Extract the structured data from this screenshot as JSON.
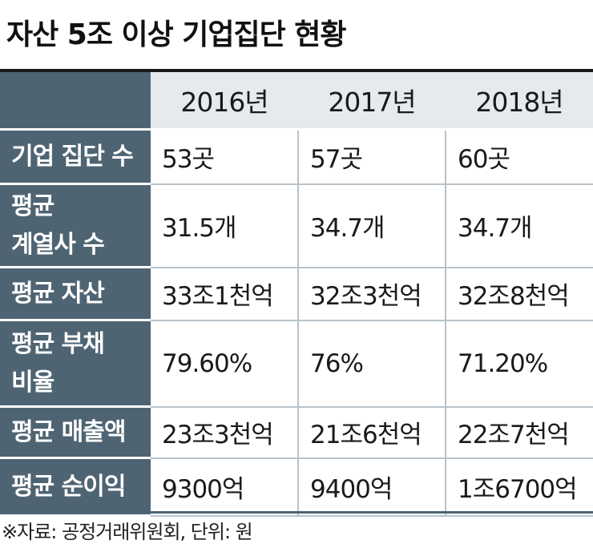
{
  "title": "자산 5조 이상 기업집단 현황",
  "header": {
    "corner": "",
    "years": [
      "2016년",
      "2017년",
      "2018년"
    ]
  },
  "rows": [
    {
      "label_lines": [
        "기업 집단 수"
      ],
      "values": [
        "53곳",
        "57곳",
        "60곳"
      ]
    },
    {
      "label_lines": [
        "평균",
        "계열사 수"
      ],
      "values": [
        "31.5개",
        "34.7개",
        "34.7개"
      ]
    },
    {
      "label_lines": [
        "평균 자산"
      ],
      "values": [
        "33조1천억",
        "32조3천억",
        "32조8천억"
      ]
    },
    {
      "label_lines": [
        "평균 부채",
        "비율"
      ],
      "values": [
        "79.60%",
        "76%",
        "71.20%"
      ]
    },
    {
      "label_lines": [
        "평균 매출액"
      ],
      "values": [
        "23조3천억",
        "21조6천억",
        "22조7천억"
      ]
    },
    {
      "label_lines": [
        "평균 순이익"
      ],
      "values": [
        "9300억",
        "9400억",
        "1조6700억"
      ]
    }
  ],
  "source": "※자료: 공정거래위원회, 단위: 원",
  "colors": {
    "header_dark": "#4f6473",
    "header_light": "#e4eaee"
  }
}
